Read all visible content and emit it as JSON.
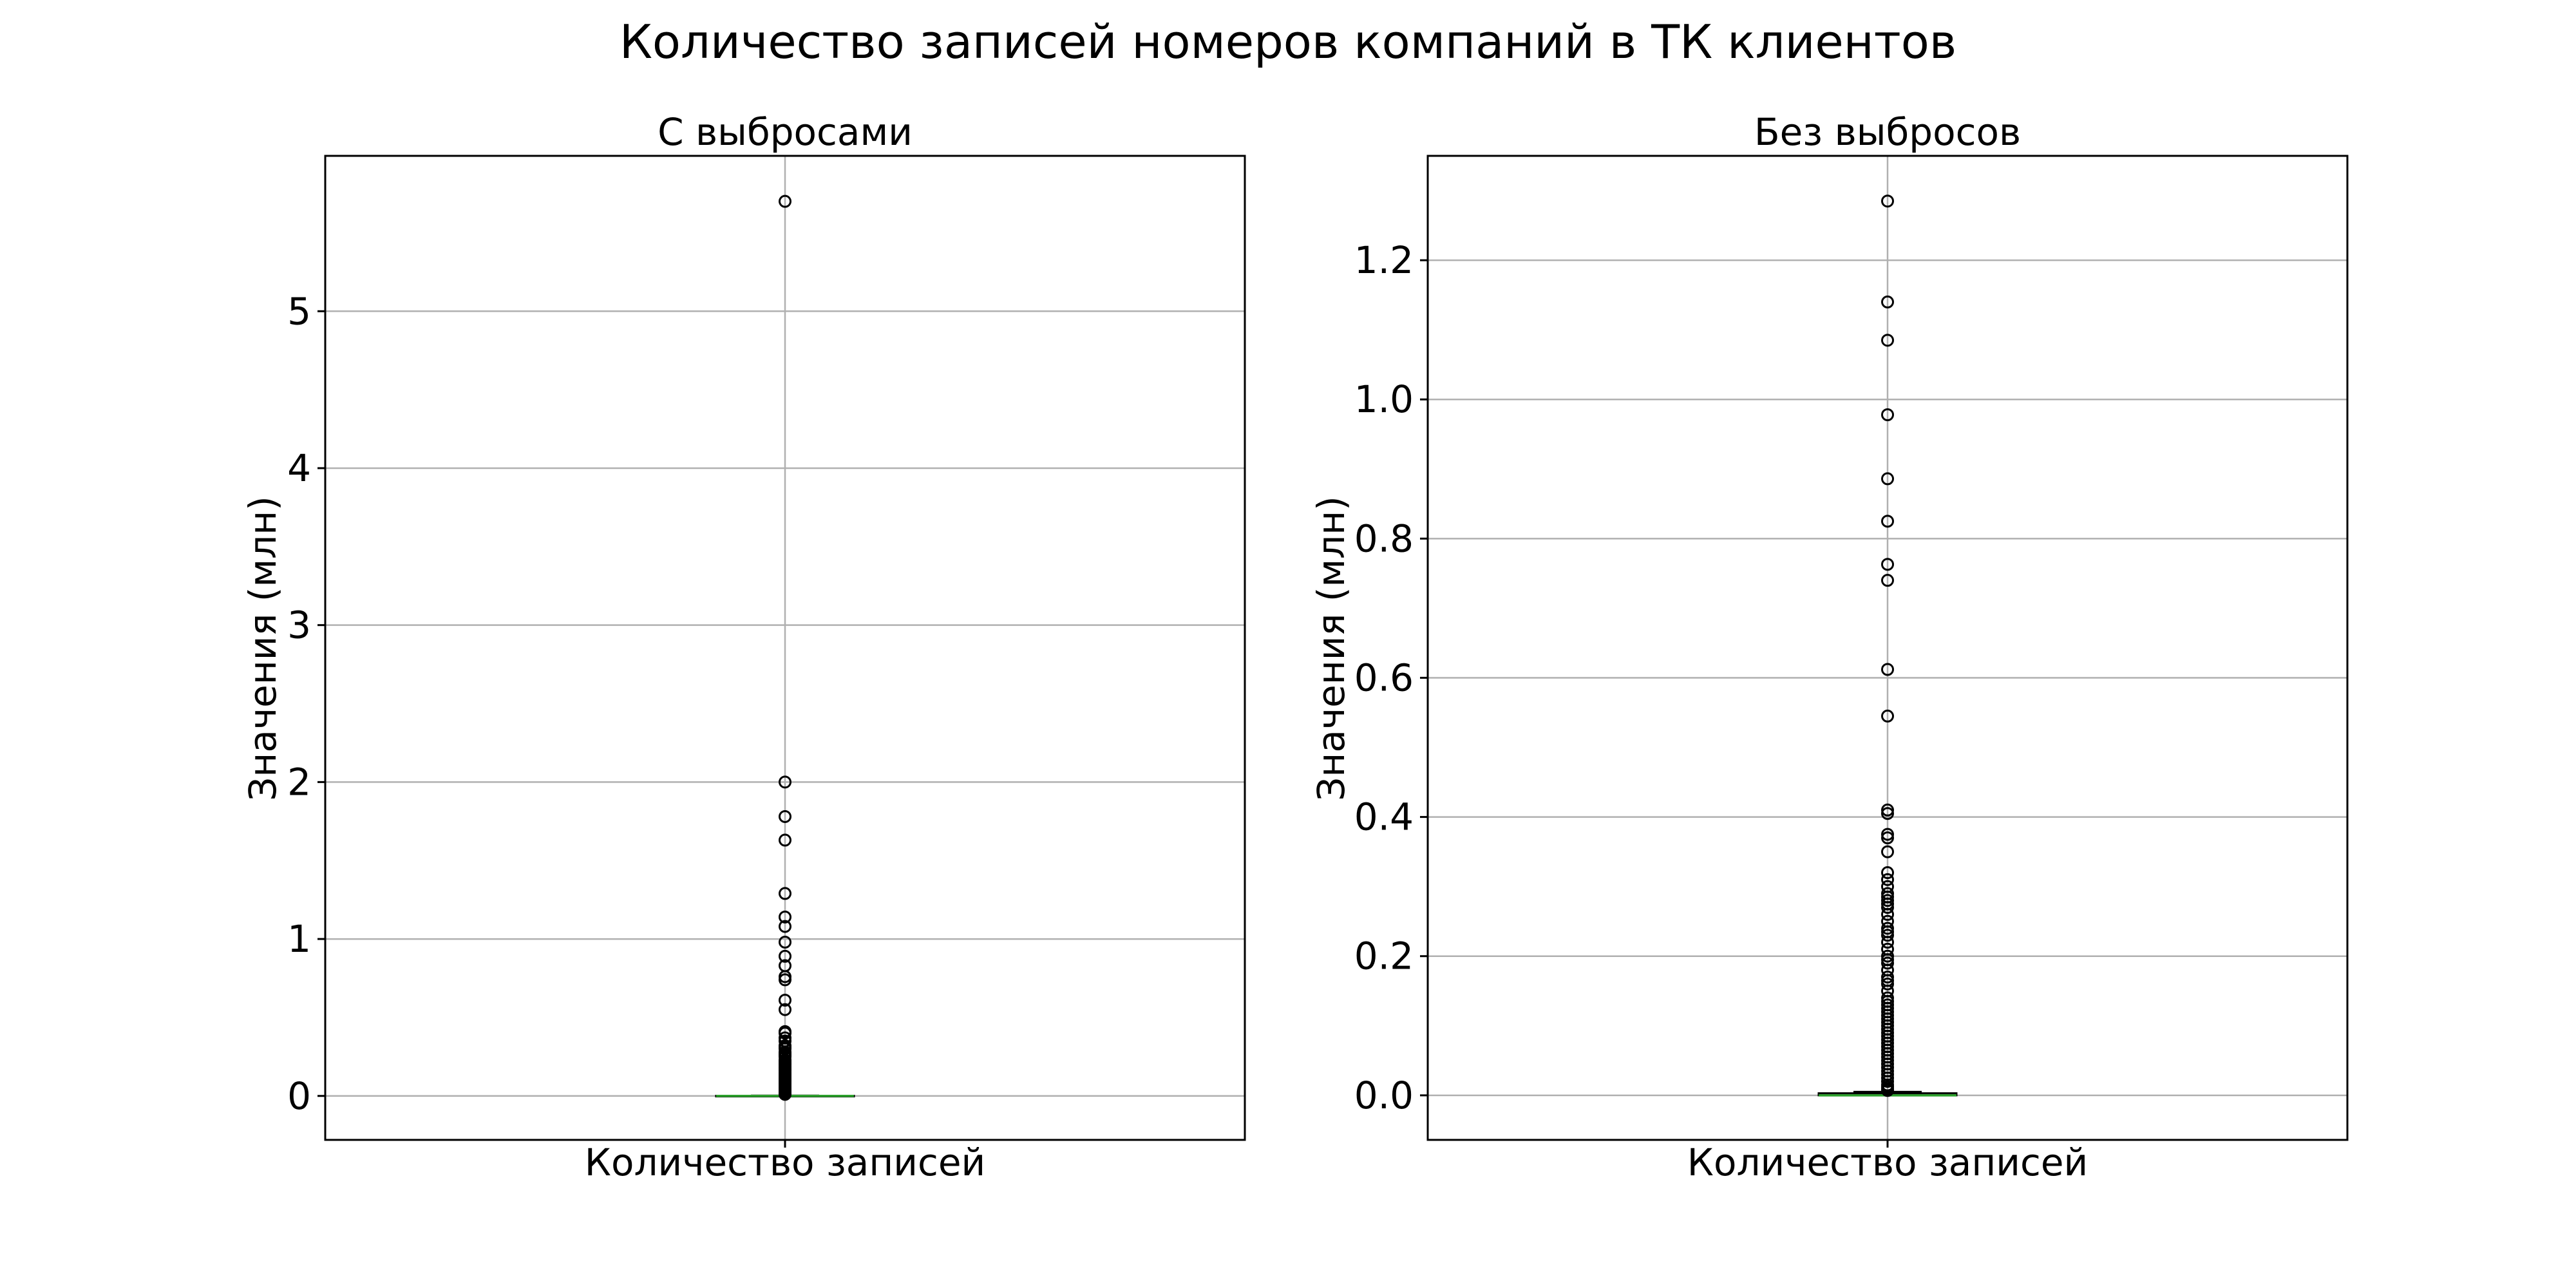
{
  "figure": {
    "title": "Количество записей номеров компаний в ТК клиентов"
  },
  "chart_data": [
    {
      "type": "box",
      "title": "С выбросами",
      "xlabel": "Количество записей",
      "ylabel": "Значения (млн)",
      "categories": [
        "Количество записей"
      ],
      "ylim": [
        -0.28,
        5.99
      ],
      "yticks": [
        0,
        1,
        2,
        3,
        4,
        5
      ],
      "ytick_labels": [
        "0",
        "1",
        "2",
        "3",
        "4",
        "5"
      ],
      "grid": true,
      "box": {
        "q1": 0.0,
        "median": 0.0,
        "q3": 0.001,
        "whisker_low": 0.0,
        "whisker_high": 0.002
      },
      "outliers": [
        5.7,
        2.0,
        1.78,
        1.63,
        1.29,
        1.14,
        1.08,
        0.98,
        0.89,
        0.83,
        0.76,
        0.74,
        0.61,
        0.55,
        0.41,
        0.4,
        0.37,
        0.35,
        0.32,
        0.31,
        0.3,
        0.28,
        0.27,
        0.26,
        0.25,
        0.23,
        0.22,
        0.21,
        0.2,
        0.19,
        0.18,
        0.17,
        0.16,
        0.15,
        0.14,
        0.13,
        0.12,
        0.11,
        0.1,
        0.09,
        0.08,
        0.07,
        0.06,
        0.05,
        0.04,
        0.03,
        0.02,
        0.01
      ]
    },
    {
      "type": "box",
      "title": "Без выбросов",
      "xlabel": "Количество записей",
      "ylabel": "Значения (млн)",
      "categories": [
        "Количество записей"
      ],
      "ylim": [
        -0.064,
        1.35
      ],
      "yticks": [
        0.0,
        0.2,
        0.4,
        0.6,
        0.8,
        1.0,
        1.2
      ],
      "ytick_labels": [
        "0.0",
        "0.2",
        "0.4",
        "0.6",
        "0.8",
        "1.0",
        "1.2"
      ],
      "grid": true,
      "box": {
        "q1": 0.0,
        "median": 0.0,
        "q3": 0.003,
        "whisker_low": 0.0,
        "whisker_high": 0.005
      },
      "outliers": [
        1.285,
        1.14,
        1.085,
        0.978,
        0.886,
        0.825,
        0.763,
        0.74,
        0.612,
        0.545,
        0.41,
        0.405,
        0.375,
        0.37,
        0.35,
        0.32,
        0.31,
        0.3,
        0.29,
        0.285,
        0.28,
        0.275,
        0.27,
        0.26,
        0.25,
        0.24,
        0.235,
        0.23,
        0.22,
        0.21,
        0.2,
        0.195,
        0.19,
        0.18,
        0.17,
        0.165,
        0.16,
        0.15,
        0.14,
        0.135,
        0.13,
        0.125,
        0.12,
        0.115,
        0.11,
        0.105,
        0.1,
        0.095,
        0.09,
        0.085,
        0.08,
        0.075,
        0.07,
        0.065,
        0.06,
        0.055,
        0.05,
        0.045,
        0.04,
        0.035,
        0.03,
        0.025,
        0.02,
        0.015,
        0.012,
        0.009,
        0.007
      ]
    }
  ]
}
